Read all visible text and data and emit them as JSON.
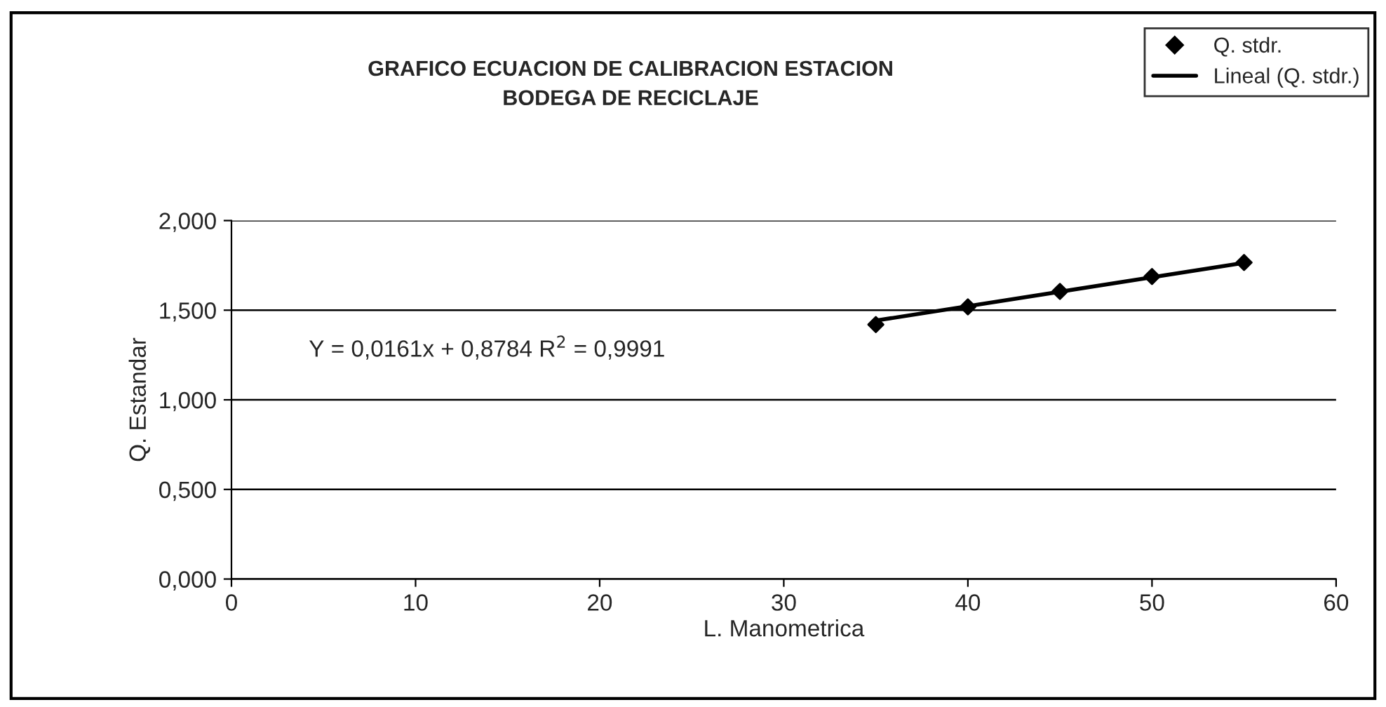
{
  "chart_data": {
    "type": "scatter",
    "title": "GRAFICO ECUACION DE CALIBRACION ESTACION\nBODEGA DE RECICLAJE",
    "xlabel": "L. Manometrica",
    "ylabel": "Q. Estandar",
    "x": [
      35,
      40,
      45,
      50,
      55
    ],
    "series": [
      {
        "name": "Q. stdr.",
        "color": "#000000",
        "marker": "diamond",
        "values": [
          1.42,
          1.519,
          1.605,
          1.688,
          1.766
        ]
      },
      {
        "name": "Lineal (Q. stdr.)",
        "type": "line",
        "color": "#000000",
        "marker": "none",
        "x": [
          35,
          55
        ],
        "values": [
          1.442,
          1.764
        ]
      }
    ],
    "annotations": [
      "Y = 0,0161x + 0,8784 R$^{2}$ = 0,9991"
    ],
    "xlim": [
      0,
      60
    ],
    "xticks": [
      0,
      10,
      20,
      30,
      40,
      50,
      60
    ],
    "ylim": [
      0,
      2
    ],
    "yticks": [
      {
        "value": 0,
        "label": "0,000"
      },
      {
        "value": 0.5,
        "label": "0,500"
      },
      {
        "value": 1,
        "label": "1,000"
      },
      {
        "value": 1.5,
        "label": "1,500"
      },
      {
        "value": 2,
        "label": "2,000"
      }
    ],
    "grid": "y",
    "legend": "top right"
  }
}
